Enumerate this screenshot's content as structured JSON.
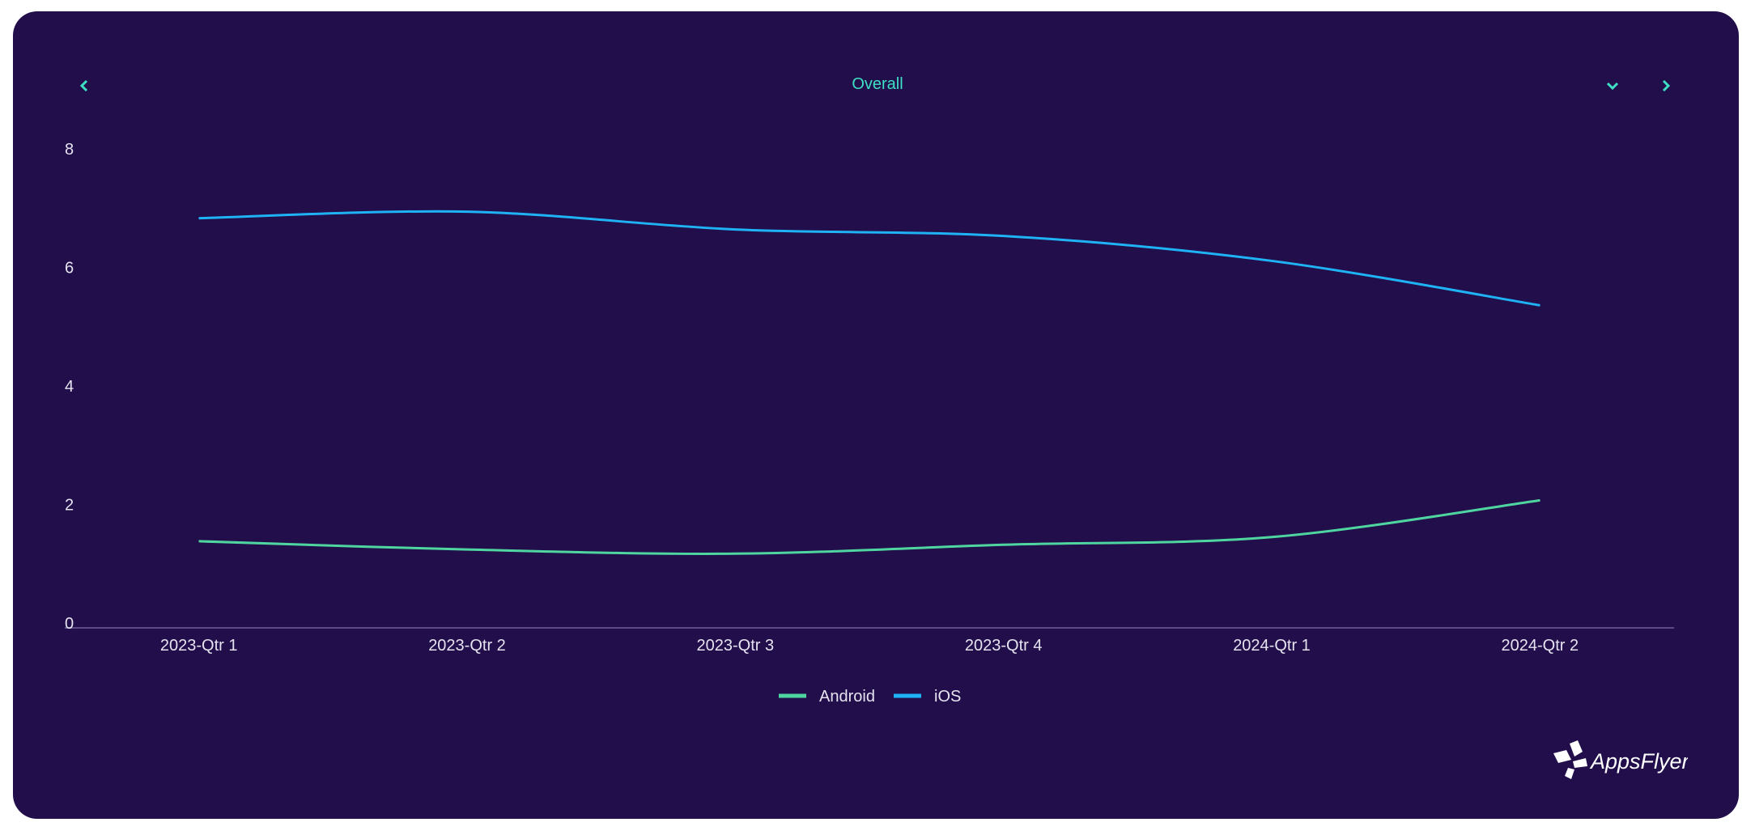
{
  "header": {
    "title": "Overall",
    "prev_icon": "chevron-left-icon",
    "dropdown_icon": "chevron-down-icon",
    "next_icon": "chevron-right-icon",
    "accent": "#3ee0c4"
  },
  "brand": {
    "logo_text": "AppsFlyer"
  },
  "chart_data": {
    "type": "line",
    "categories": [
      "2023-Qtr 1",
      "2023-Qtr 2",
      "2023-Qtr 3",
      "2023-Qtr 4",
      "2024-Qtr 1",
      "2024-Qtr 2"
    ],
    "series": [
      {
        "name": "Android",
        "color": "#4fd6a0",
        "values": [
          1.38,
          1.24,
          1.17,
          1.32,
          1.45,
          2.07
        ]
      },
      {
        "name": "iOS",
        "color": "#1fb2f5",
        "values": [
          6.83,
          6.94,
          6.64,
          6.53,
          6.11,
          5.36
        ]
      }
    ],
    "yticks": [
      "0",
      "2",
      "4",
      "6",
      "8"
    ],
    "ylim": [
      0,
      8
    ],
    "grid": false,
    "smooth": true,
    "legend": "bottom-center"
  }
}
